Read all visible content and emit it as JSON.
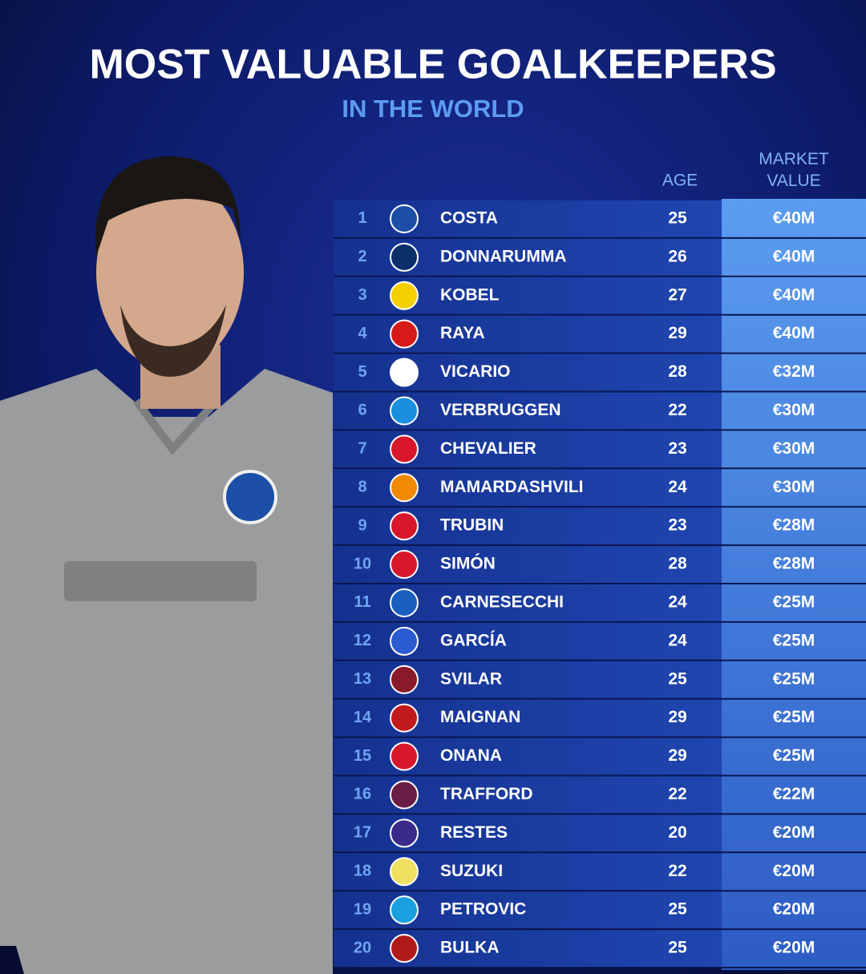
{
  "header": {
    "title": "MOST VALUABLE GOALKEEPERS",
    "subtitle": "IN THE WORLD"
  },
  "table": {
    "columns": {
      "age": "AGE",
      "value": "MARKET VALUE"
    },
    "rows": [
      [
        1,
        "COSTA",
        25,
        "€40M"
      ],
      [
        2,
        "DONNARUMMA",
        26,
        "€40M"
      ],
      [
        3,
        "KOBEL",
        27,
        "€40M"
      ],
      [
        4,
        "RAYA",
        29,
        "€40M"
      ],
      [
        5,
        "VICARIO",
        28,
        "€32M"
      ],
      [
        6,
        "VERBRUGGEN",
        22,
        "€30M"
      ],
      [
        7,
        "CHEVALIER",
        23,
        "€30M"
      ],
      [
        8,
        "MAMARDASHVILI",
        24,
        "€30M"
      ],
      [
        9,
        "TRUBIN",
        23,
        "€28M"
      ],
      [
        10,
        "SIMÓN",
        28,
        "€28M"
      ],
      [
        11,
        "CARNESECCHI",
        24,
        "€25M"
      ],
      [
        12,
        "GARCÍA",
        24,
        "€25M"
      ],
      [
        13,
        "SVILAR",
        25,
        "€25M"
      ],
      [
        14,
        "MAIGNAN",
        29,
        "€25M"
      ],
      [
        15,
        "ONANA",
        29,
        "€25M"
      ],
      [
        16,
        "TRAFFORD",
        22,
        "€22M"
      ],
      [
        17,
        "RESTES",
        20,
        "€20M"
      ],
      [
        18,
        "SUZUKI",
        22,
        "€20M"
      ],
      [
        19,
        "PETROVIC",
        25,
        "€20M"
      ],
      [
        20,
        "BULKA",
        25,
        "€20M"
      ]
    ]
  }
}
